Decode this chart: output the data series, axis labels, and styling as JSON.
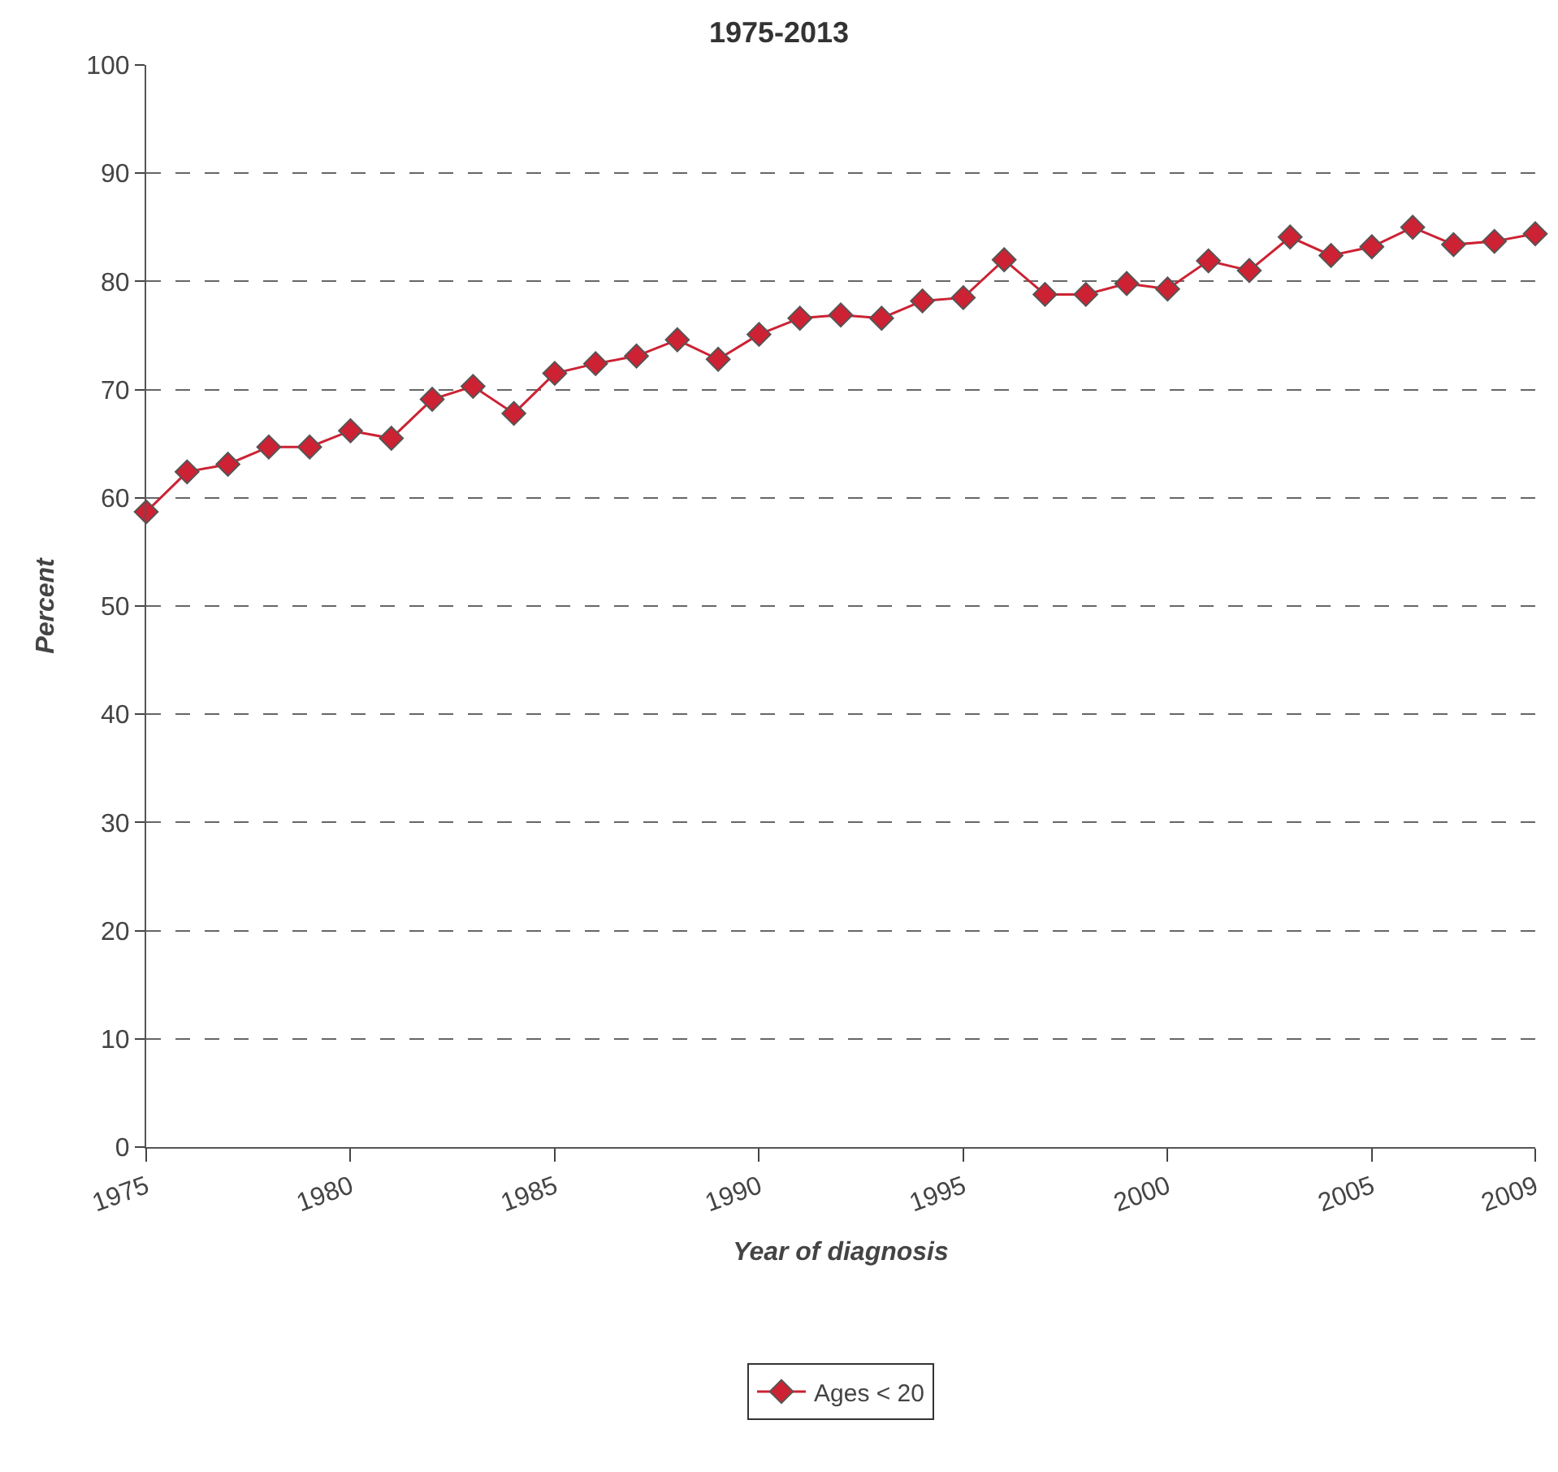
{
  "chart_data": {
    "type": "line",
    "title": "1975-2013",
    "xlabel": "Year of diagnosis",
    "ylabel": "Percent",
    "x": [
      1975,
      1976,
      1977,
      1978,
      1979,
      1980,
      1981,
      1982,
      1983,
      1984,
      1985,
      1986,
      1987,
      1988,
      1989,
      1990,
      1991,
      1992,
      1993,
      1994,
      1995,
      1996,
      1997,
      1998,
      1999,
      2000,
      2001,
      2002,
      2003,
      2004,
      2005,
      2006,
      2007,
      2008,
      2009
    ],
    "series": [
      {
        "name": "Ages < 20",
        "color": "#cc2233",
        "values": [
          58.7,
          62.4,
          63.1,
          64.7,
          64.7,
          66.2,
          65.5,
          69.1,
          70.3,
          67.8,
          71.5,
          72.4,
          73.1,
          74.6,
          72.8,
          75.1,
          76.6,
          76.9,
          76.6,
          78.2,
          78.5,
          82.0,
          78.8,
          78.8,
          79.8,
          79.3,
          81.9,
          81.0,
          84.1,
          82.4,
          83.2,
          85.0,
          83.4,
          83.7,
          84.4
        ]
      }
    ],
    "xlim": [
      1975,
      2009
    ],
    "xticks": [
      1975,
      1980,
      1985,
      1990,
      1995,
      2000,
      2005,
      2009
    ],
    "ylim": [
      0,
      100
    ],
    "yticks": [
      0,
      10,
      20,
      30,
      40,
      50,
      60,
      70,
      80,
      90,
      100
    ],
    "grid": "y",
    "legend": "bottom",
    "marker": "diamond",
    "line_style": "solid"
  }
}
